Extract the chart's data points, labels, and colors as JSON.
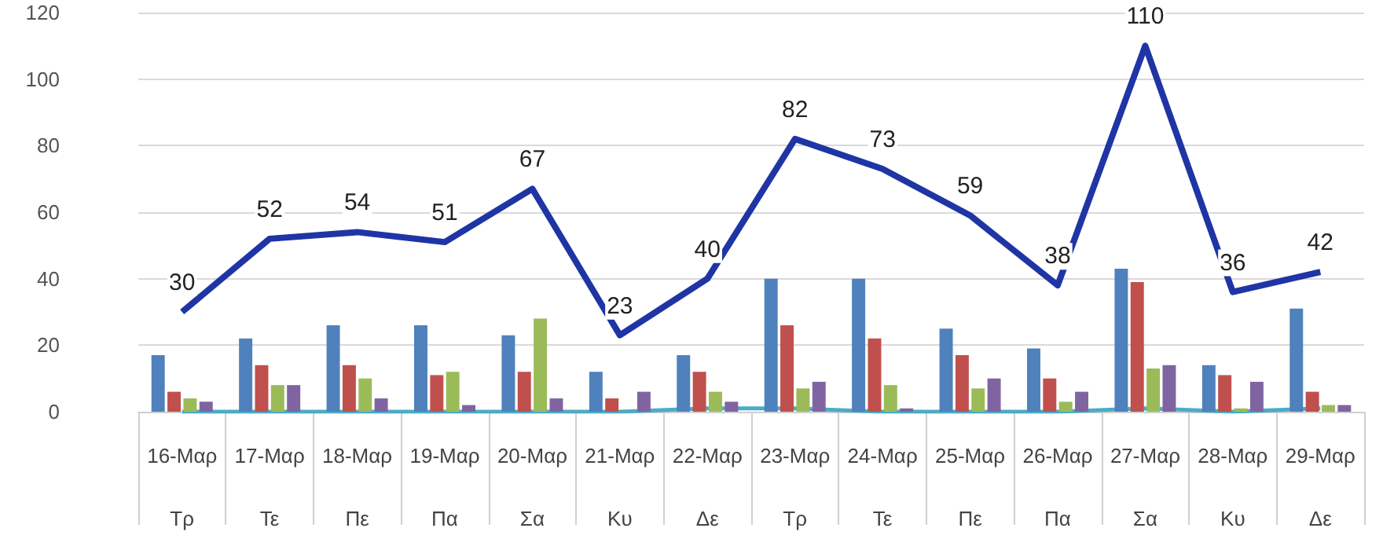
{
  "chart_data": {
    "type": "bar",
    "categories": [
      "16-Μαρ\nΤρ",
      "17-Μαρ\nΤε",
      "18-Μαρ\nΠε",
      "19-Μαρ\nΠα",
      "20-Μαρ\nΣα",
      "21-Μαρ\nΚυ",
      "22-Μαρ\nΔε",
      "23-Μαρ\nΤρ",
      "24-Μαρ\nΤε",
      "25-Μαρ\nΠε",
      "26-Μαρ\nΠα",
      "27-Μαρ\nΣα",
      "28-Μαρ\nΚυ",
      "29-Μαρ\nΔε"
    ],
    "series": [
      {
        "color": "#4f81bd",
        "values": [
          17,
          22,
          26,
          26,
          23,
          12,
          17,
          40,
          40,
          25,
          19,
          43,
          14,
          31
        ]
      },
      {
        "color": "#c0504d",
        "values": [
          6,
          14,
          14,
          11,
          12,
          4,
          12,
          26,
          22,
          17,
          10,
          39,
          11,
          6
        ]
      },
      {
        "color": "#9bbb59",
        "values": [
          4,
          8,
          10,
          12,
          28,
          0,
          6,
          7,
          8,
          7,
          3,
          13,
          1,
          2
        ]
      },
      {
        "color": "#8064a2",
        "values": [
          3,
          8,
          4,
          2,
          4,
          6,
          3,
          9,
          1,
          10,
          6,
          14,
          9,
          2
        ]
      },
      {
        "type": "line",
        "color": "#4bacc6",
        "values": [
          0,
          0,
          0,
          0,
          0,
          0,
          1,
          1,
          0,
          0,
          0,
          1,
          0,
          1
        ]
      },
      {
        "type": "line",
        "color": "#1f35a5",
        "values": [
          30,
          52,
          54,
          51,
          67,
          23,
          40,
          82,
          73,
          59,
          38,
          110,
          36,
          42
        ],
        "value_labels": [
          "30",
          "52",
          "54",
          "51",
          "67",
          "23",
          "40",
          "82",
          "73",
          "59",
          "38",
          "110",
          "36",
          "42"
        ]
      }
    ],
    "ylim": [
      0,
      120
    ],
    "yticks": [
      0,
      20,
      40,
      60,
      80,
      100,
      120
    ],
    "grid": "y",
    "marker": "none"
  }
}
